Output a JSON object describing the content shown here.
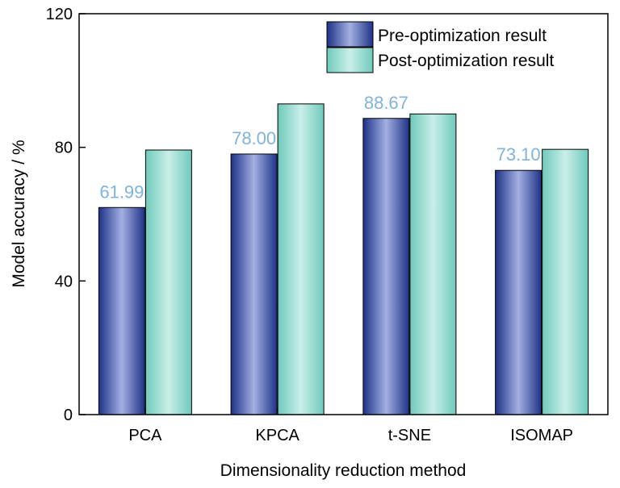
{
  "chart_data": {
    "type": "bar",
    "title": "",
    "xlabel": "Dimensionality reduction method",
    "ylabel": "Model accuracy / %",
    "ylim": [
      0,
      120
    ],
    "yticks": [
      "0",
      "40",
      "80",
      "120"
    ],
    "categories": [
      "PCA",
      "KPCA",
      "t-SNE",
      "ISOMAP"
    ],
    "series": [
      {
        "name": "Pre-optimization result",
        "values": [
          61.99,
          78.0,
          88.67,
          73.1
        ],
        "data_labels": [
          "61.99",
          "78.00",
          "88.67",
          "73.10"
        ],
        "color": "#5c6fc2"
      },
      {
        "name": "Post-optimization result",
        "values": [
          79.2,
          93.0,
          90.0,
          79.4
        ],
        "color": "#a8e4da"
      }
    ],
    "data_label_color": "#7fb3dc",
    "grid": false,
    "legend_position": "top-right"
  }
}
